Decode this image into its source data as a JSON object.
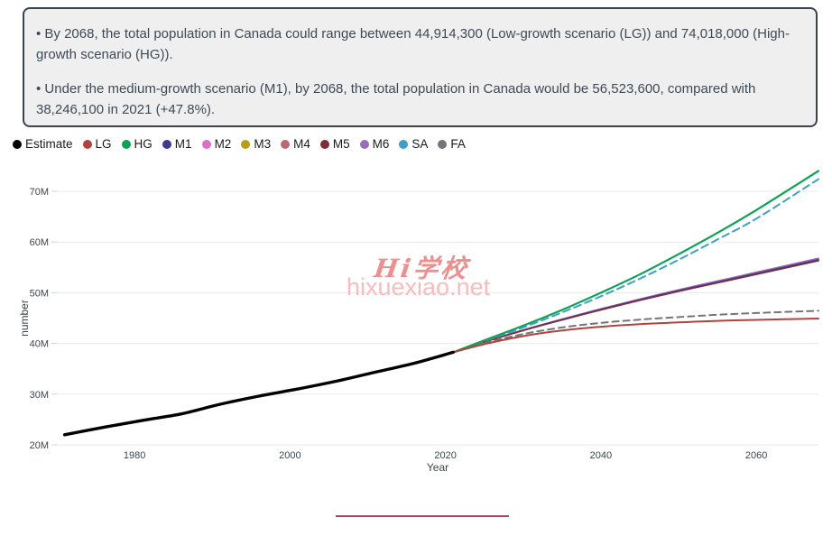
{
  "summary": {
    "bullet1": "• By 2068, the total population in Canada could range between 44,914,300 (Low-growth scenario (LG)) and 74,018,000 (High-growth scenario (HG)).",
    "bullet2": "• Under the medium-growth scenario (M1), by 2068, the total population in Canada would be 56,523,600, compared with 38,246,100 in 2021 (+47.8%)."
  },
  "legend": {
    "items": [
      {
        "label": "Estimate",
        "color": "#000000"
      },
      {
        "label": "LG",
        "color": "#b3423e"
      },
      {
        "label": "HG",
        "color": "#0ca355"
      },
      {
        "label": "M1",
        "color": "#3e3c8a"
      },
      {
        "label": "M2",
        "color": "#db6fc6"
      },
      {
        "label": "M3",
        "color": "#b99b15"
      },
      {
        "label": "M4",
        "color": "#bd6a6f"
      },
      {
        "label": "M5",
        "color": "#7d2e37"
      },
      {
        "label": "M6",
        "color": "#9d6cba"
      },
      {
        "label": "SA",
        "color": "#3fa0c5"
      },
      {
        "label": "FA",
        "color": "#717579"
      }
    ]
  },
  "watermark": {
    "line1": "Hi学校",
    "line2": "hixuexiao.net",
    "color1": "#ee8f8f",
    "color2": "#f7bdbd"
  },
  "footer": {
    "rule_color": "#a8485f"
  },
  "chart_data": {
    "type": "line",
    "title": "",
    "xlabel": "Year",
    "ylabel": "number",
    "xlim": [
      1970,
      2068
    ],
    "ylim": [
      20,
      75
    ],
    "grid": true,
    "legend_position": "top-left",
    "yticks": [
      {
        "v": 20,
        "label": "20M"
      },
      {
        "v": 30,
        "label": "30M"
      },
      {
        "v": 40,
        "label": "40M"
      },
      {
        "v": 50,
        "label": "50M"
      },
      {
        "v": 60,
        "label": "60M"
      },
      {
        "v": 70,
        "label": "70M"
      }
    ],
    "xticks": [
      1980,
      2000,
      2020,
      2040,
      2060
    ],
    "series": [
      {
        "name": "M2",
        "color": "#db6fc6",
        "width": 1.6,
        "dash": "",
        "x": [
          2021,
          2025,
          2030,
          2035,
          2040,
          2045,
          2050,
          2055,
          2060,
          2068
        ],
        "values": [
          38.25,
          40.28,
          42.56,
          44.64,
          46.62,
          48.5,
          50.29,
          51.97,
          53.66,
          56.35
        ]
      },
      {
        "name": "M3",
        "color": "#b99b15",
        "width": 1.6,
        "dash": "",
        "x": [
          2021,
          2025,
          2030,
          2035,
          2040,
          2045,
          2050,
          2055,
          2060,
          2068
        ],
        "values": [
          38.25,
          40.31,
          42.62,
          44.74,
          46.75,
          48.66,
          50.47,
          52.18,
          53.89,
          56.62
        ]
      },
      {
        "name": "M4",
        "color": "#bd6a6f",
        "width": 1.6,
        "dash": "",
        "x": [
          2021,
          2025,
          2030,
          2035,
          2040,
          2045,
          2050,
          2055,
          2060,
          2068
        ],
        "values": [
          38.25,
          40.29,
          42.58,
          44.68,
          46.67,
          48.56,
          50.35,
          52.05,
          53.74,
          56.45
        ]
      },
      {
        "name": "M6",
        "color": "#9d6cba",
        "width": 1.6,
        "dash": "",
        "x": [
          2021,
          2025,
          2030,
          2035,
          2040,
          2045,
          2050,
          2055,
          2060,
          2068
        ],
        "values": [
          38.25,
          40.33,
          42.67,
          44.8,
          46.83,
          48.76,
          50.59,
          52.31,
          54.04,
          56.8
        ]
      },
      {
        "name": "M1",
        "color": "#3e3c8a",
        "width": 1.6,
        "dash": "",
        "x": [
          2021,
          2025,
          2030,
          2035,
          2040,
          2045,
          2050,
          2055,
          2060,
          2068
        ],
        "values": [
          38.25,
          40.3,
          42.6,
          44.7,
          46.7,
          48.6,
          50.4,
          52.1,
          53.8,
          56.52
        ]
      },
      {
        "name": "M5",
        "color": "#7d2e37",
        "width": 1.6,
        "dash": "",
        "x": [
          2021,
          2025,
          2030,
          2035,
          2040,
          2045,
          2050,
          2055,
          2060,
          2068
        ],
        "values": [
          38.25,
          40.28,
          42.55,
          44.62,
          46.6,
          48.48,
          50.26,
          51.94,
          53.61,
          56.3
        ]
      },
      {
        "name": "SA",
        "color": "#3fa0c5",
        "width": 2,
        "dash": "8 5",
        "x": [
          2021,
          2025,
          2030,
          2035,
          2040,
          2045,
          2050,
          2055,
          2060,
          2068
        ],
        "values": [
          38.25,
          40.45,
          43.15,
          46.1,
          49.3,
          52.75,
          56.5,
          60.5,
          64.6,
          72.4
        ]
      },
      {
        "name": "FA",
        "color": "#717579",
        "width": 2,
        "dash": "7 5",
        "x": [
          2021,
          2025,
          2030,
          2035,
          2040,
          2045,
          2050,
          2055,
          2060,
          2068
        ],
        "values": [
          38.25,
          40.05,
          41.85,
          43.15,
          44.05,
          44.7,
          45.2,
          45.65,
          46.0,
          46.45
        ]
      },
      {
        "name": "HG",
        "color": "#0ca355",
        "width": 2.2,
        "dash": "",
        "x": [
          2021,
          2025,
          2030,
          2035,
          2040,
          2045,
          2050,
          2055,
          2060,
          2068
        ],
        "values": [
          38.25,
          40.6,
          43.5,
          46.6,
          50.0,
          53.6,
          57.6,
          61.8,
          66.3,
          74.02
        ]
      },
      {
        "name": "LG",
        "color": "#b3423e",
        "width": 2,
        "dash": "",
        "x": [
          2021,
          2025,
          2030,
          2035,
          2040,
          2045,
          2050,
          2055,
          2060,
          2068
        ],
        "values": [
          38.25,
          39.85,
          41.45,
          42.55,
          43.3,
          43.8,
          44.15,
          44.45,
          44.65,
          44.91
        ]
      },
      {
        "name": "Estimate",
        "color": "#000000",
        "width": 3.4,
        "dash": "",
        "x": [
          1971,
          1976,
          1981,
          1986,
          1991,
          1996,
          2001,
          2006,
          2011,
          2016,
          2021
        ],
        "values": [
          22.0,
          23.45,
          24.82,
          26.1,
          28.0,
          29.61,
          31.02,
          32.57,
          34.34,
          36.11,
          38.25
        ]
      }
    ]
  }
}
